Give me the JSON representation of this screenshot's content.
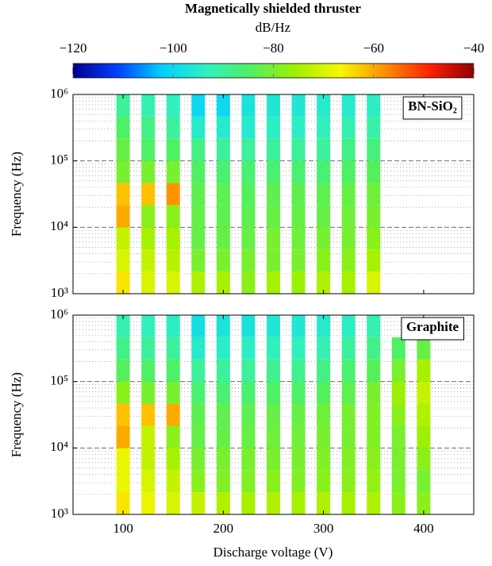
{
  "chart_data": {
    "type": "heatmap",
    "title": "Magnetically shielded thruster",
    "colorbar": {
      "label": "dB/Hz",
      "lim": [
        -120,
        -40
      ],
      "ticks": [
        {
          "value": -120,
          "label": "−120"
        },
        {
          "value": -100,
          "label": "−100"
        },
        {
          "value": -80,
          "label": "−80"
        },
        {
          "value": -60,
          "label": "−60"
        },
        {
          "value": -40,
          "label": "−40"
        }
      ],
      "colors": [
        "#00008f",
        "#0040ff",
        "#00d0ff",
        "#30f0c0",
        "#50f060",
        "#a0f000",
        "#f8f800",
        "#ff9000",
        "#ff2000",
        "#8f0000"
      ]
    },
    "xlabel": "Discharge voltage (V)",
    "xlim": [
      50,
      450
    ],
    "xticks": [
      100,
      200,
      300,
      400
    ],
    "log_y": true,
    "grid": true,
    "panels": [
      {
        "label": "BN-SiO₂",
        "ylabel": "Frequency (Hz)",
        "ylim": [
          1000,
          1000000
        ],
        "yticks": [
          {
            "value": 1000,
            "label": "10³"
          },
          {
            "value": 10000,
            "label": "10⁴"
          },
          {
            "value": 100000,
            "label": "10⁵"
          },
          {
            "value": 1000000,
            "label": "10⁶"
          }
        ],
        "freq_edges": [
          1000,
          2154,
          4642,
          10000,
          21544,
          46416,
          100000,
          215443,
          464159,
          1000000
        ],
        "x": [
          100,
          125,
          150,
          175,
          200,
          225,
          250,
          275,
          300,
          325,
          350
        ],
        "values": [
          [
            -65,
            -70,
            -72,
            -60,
            -62,
            -80,
            -82,
            -85,
            -90
          ],
          [
            -70,
            -72,
            -75,
            -78,
            -62,
            -80,
            -85,
            -88,
            -92
          ],
          [
            -70,
            -73,
            -75,
            -78,
            -58,
            -80,
            -85,
            -90,
            -93
          ],
          [
            -74,
            -80,
            -82,
            -82,
            -83,
            -85,
            -88,
            -95,
            -100
          ],
          [
            -75,
            -80,
            -82,
            -83,
            -83,
            -86,
            -90,
            -95,
            -100
          ],
          [
            -78,
            -80,
            -82,
            -83,
            -84,
            -86,
            -90,
            -95,
            -97
          ],
          [
            -75,
            -80,
            -80,
            -82,
            -83,
            -86,
            -90,
            -94,
            -96
          ],
          [
            -76,
            -80,
            -81,
            -82,
            -83,
            -86,
            -90,
            -94,
            -96
          ],
          [
            -74,
            -78,
            -80,
            -82,
            -83,
            -86,
            -90,
            -93,
            -95
          ],
          [
            -75,
            -78,
            -80,
            -81,
            -82,
            -85,
            -88,
            -92,
            -95
          ],
          [
            -70,
            -75,
            -78,
            -80,
            -81,
            -84,
            -87,
            -91,
            -94
          ]
        ]
      },
      {
        "label": "Graphite",
        "ylabel": "Frequency (Hz)",
        "ylim": [
          1000,
          1000000
        ],
        "yticks": [
          {
            "value": 1000,
            "label": "10³"
          },
          {
            "value": 10000,
            "label": "10⁴"
          },
          {
            "value": 100000,
            "label": "10⁵"
          },
          {
            "value": 1000000,
            "label": "10⁶"
          }
        ],
        "freq_edges": [
          1000,
          2154,
          4642,
          10000,
          21544,
          46416,
          100000,
          215443,
          464159,
          1000000
        ],
        "x": [
          100,
          125,
          150,
          175,
          200,
          225,
          250,
          275,
          300,
          325,
          350,
          375,
          400
        ],
        "values": [
          [
            -65,
            -68,
            -68,
            -60,
            -62,
            -78,
            -84,
            -88,
            -92
          ],
          [
            -68,
            -70,
            -72,
            -72,
            -62,
            -80,
            -85,
            -90,
            -93
          ],
          [
            -70,
            -72,
            -75,
            -78,
            -60,
            -80,
            -85,
            -90,
            -94
          ],
          [
            -72,
            -78,
            -80,
            -82,
            -83,
            -86,
            -90,
            -95,
            -98
          ],
          [
            -74,
            -79,
            -80,
            -82,
            -83,
            -86,
            -90,
            -94,
            -97
          ],
          [
            -75,
            -79,
            -80,
            -82,
            -83,
            -86,
            -90,
            -94,
            -97
          ],
          [
            -74,
            -78,
            -80,
            -81,
            -82,
            -85,
            -89,
            -93,
            -96
          ],
          [
            -75,
            -79,
            -80,
            -81,
            -82,
            -85,
            -89,
            -93,
            -96
          ],
          [
            -74,
            -78,
            -79,
            -80,
            -81,
            -84,
            -88,
            -92,
            -95
          ],
          [
            -75,
            -78,
            -79,
            -80,
            -80,
            -83,
            -86,
            -90,
            -94
          ],
          [
            -74,
            -77,
            -78,
            -79,
            -79,
            -80,
            -84,
            -88,
            -92
          ],
          [
            -78,
            -80,
            -80,
            -80,
            -78,
            -76,
            -80,
            -85,
            null
          ],
          [
            -78,
            -80,
            -78,
            -76,
            -74,
            -72,
            -75,
            -82,
            null
          ]
        ]
      }
    ]
  }
}
